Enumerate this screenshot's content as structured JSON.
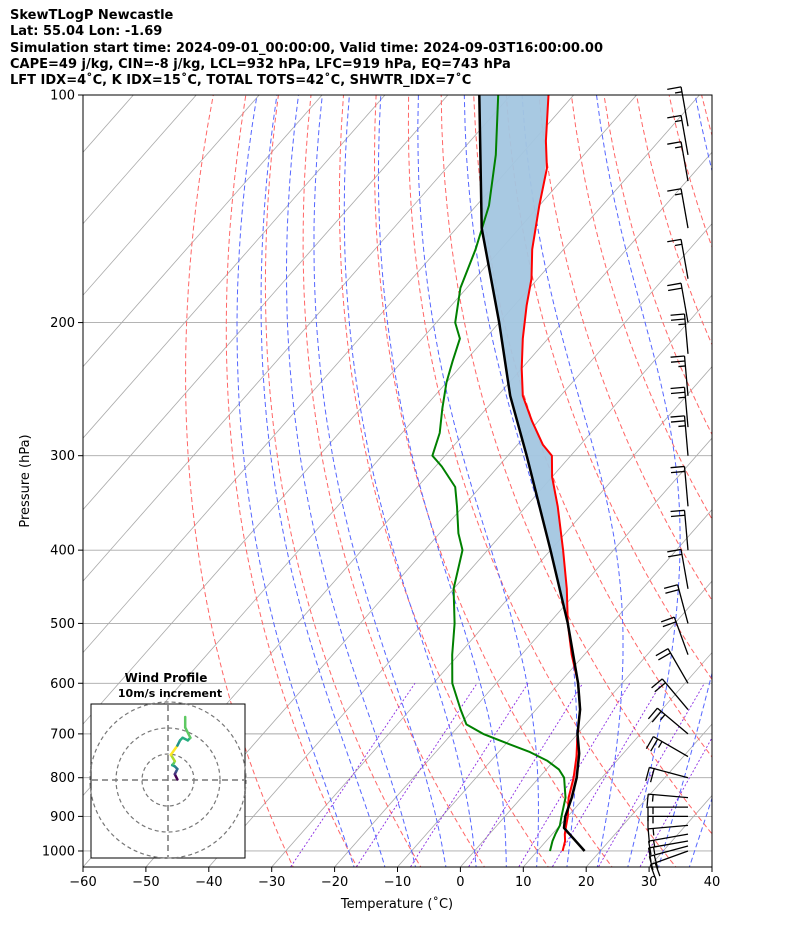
{
  "header": {
    "line1": "SkewTLogP Newcastle",
    "line2": "Lat: 55.04   Lon: -1.69",
    "line3": "Simulation start time: 2024-09-01_00:00:00, Valid time: 2024-09-03T16:00:00.00",
    "line4": "CAPE=49 j/kg, CIN=-8 j/kg, LCL=932 hPa, LFC=919 hPa, EQ=743 hPa",
    "line5": "LFT IDX=4˚C, K IDX=15˚C, TOTAL TOTS=42˚C, SHWTR_IDX=7˚C"
  },
  "colors": {
    "temperature": "#ff0000",
    "dewpoint": "#008000",
    "parcel": "#000000",
    "cape_fill": "#a3c6e0",
    "dry_adiabat": "#ff6666",
    "moist_adiabat": "#5566ff",
    "mixing_ratio": "#8a2be2",
    "isotherm": "#a9a9a9"
  },
  "inset": {
    "title_line1": "Wind Profile",
    "title_line2": "10m/s increment"
  },
  "chart_data": {
    "type": "skewt-logp",
    "xlabel": "Temperature (˚C)",
    "ylabel": "Pressure (hPa)",
    "xlim": [
      -60,
      40
    ],
    "ylim": [
      1050,
      100
    ],
    "x_ticks": [
      -60,
      -50,
      -40,
      -30,
      -20,
      -10,
      0,
      10,
      20,
      30,
      40
    ],
    "x_tick_labels": [
      "−60",
      "−50",
      "−40",
      "−30",
      "−20",
      "−10",
      "0",
      "10",
      "20",
      "30",
      "40"
    ],
    "y_ticks": [
      100,
      200,
      300,
      400,
      500,
      600,
      700,
      800,
      900,
      1000
    ],
    "y_tick_labels": [
      "100",
      "200",
      "300",
      "400",
      "500",
      "600",
      "700",
      "800",
      "900",
      "1000"
    ],
    "grid": true,
    "temperature_profile": {
      "pressure": [
        1000,
        970,
        950,
        925,
        900,
        850,
        800,
        750,
        700,
        650,
        600,
        550,
        500,
        450,
        400,
        350,
        320,
        300,
        290,
        270,
        250,
        230,
        210,
        190,
        175,
        160,
        140,
        125,
        115,
        100
      ],
      "temp": [
        14,
        13,
        12,
        11,
        10,
        7.5,
        5.5,
        3,
        0,
        -3,
        -7,
        -12,
        -17,
        -22,
        -28,
        -35,
        -40,
        -43,
        -46,
        -51,
        -56,
        -60,
        -64,
        -68,
        -71,
        -75,
        -80,
        -84,
        -88,
        -94
      ]
    },
    "dewpoint_profile": {
      "pressure": [
        1000,
        970,
        950,
        925,
        900,
        850,
        800,
        780,
        760,
        740,
        720,
        700,
        680,
        650,
        600,
        550,
        500,
        450,
        400,
        380,
        350,
        330,
        310,
        300,
        280,
        260,
        240,
        225,
        210,
        200,
        180,
        160,
        140,
        120,
        100
      ],
      "dewpt": [
        12,
        11,
        10.5,
        10,
        9,
        7,
        4,
        2,
        -1,
        -5,
        -10,
        -15,
        -19,
        -22,
        -27,
        -31,
        -35,
        -40,
        -44,
        -47,
        -51,
        -54,
        -59,
        -62,
        -64,
        -67,
        -70,
        -72,
        -74,
        -77,
        -81,
        -84,
        -88,
        -94,
        -102
      ]
    },
    "parcel_profile": {
      "pressure": [
        1000,
        932,
        900,
        850,
        800,
        743,
        700,
        650,
        600,
        500,
        400,
        300,
        250,
        200,
        150,
        100
      ],
      "temp": [
        17.5,
        11,
        9.6,
        8,
        6,
        3,
        0,
        -3,
        -7,
        -17,
        -30,
        -47,
        -58,
        -70,
        -86,
        -105
      ]
    },
    "wind_barbs": {
      "pressure": [
        1000,
        985,
        970,
        950,
        925,
        900,
        875,
        850,
        800,
        750,
        700,
        650,
        600,
        550,
        500,
        450,
        400,
        350,
        300,
        275,
        250,
        220,
        200,
        175,
        150,
        130,
        120,
        110
      ],
      "speed_kt": [
        20,
        20,
        15,
        15,
        15,
        15,
        15,
        15,
        20,
        25,
        25,
        20,
        20,
        20,
        20,
        20,
        20,
        20,
        25,
        25,
        25,
        25,
        20,
        15,
        15,
        15,
        15,
        15
      ],
      "direction_deg": [
        250,
        255,
        260,
        260,
        265,
        270,
        270,
        275,
        285,
        300,
        310,
        320,
        330,
        340,
        345,
        350,
        355,
        355,
        355,
        355,
        355,
        355,
        350,
        350,
        350,
        350,
        350,
        350
      ]
    },
    "hodograph": {
      "u": [
        -1,
        -2,
        -1.5,
        -1,
        -2,
        -3,
        -2.5,
        -2,
        -3.5,
        -1,
        0,
        1,
        3,
        4,
        2,
        2
      ],
      "v": [
        1,
        3,
        4,
        5,
        6,
        6.5,
        7,
        8,
        10.5,
        14,
        16,
        17,
        16,
        17,
        21,
        25
      ]
    }
  }
}
